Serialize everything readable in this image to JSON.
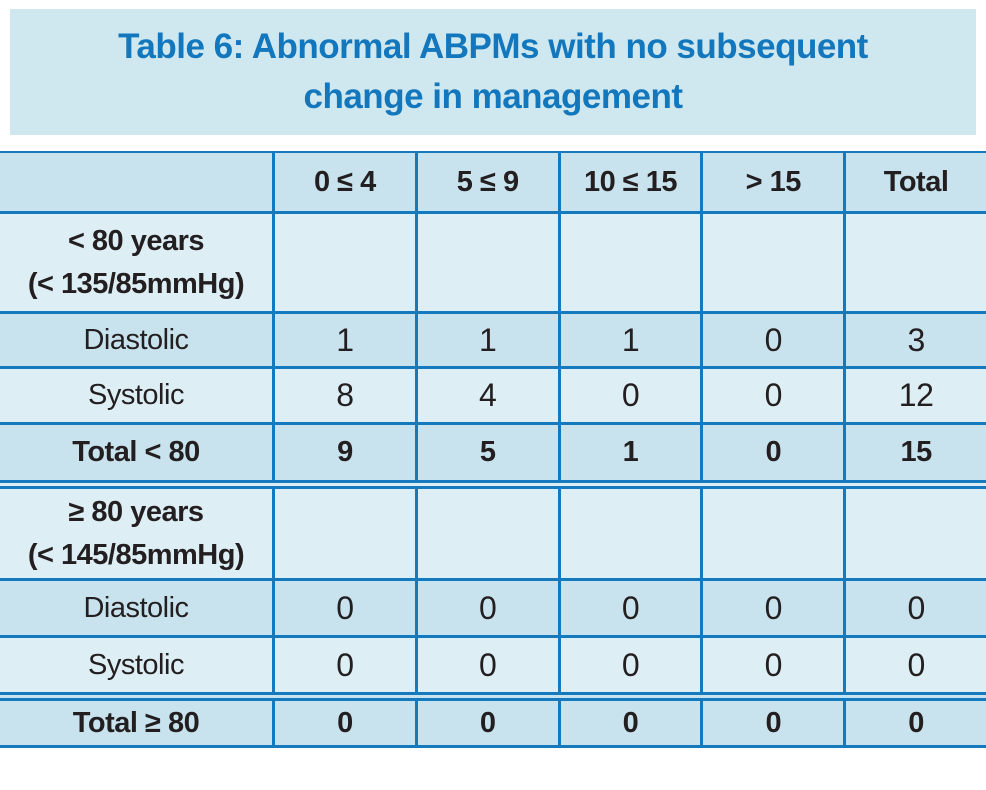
{
  "title": {
    "line1": "Table 6: Abnormal ABPMs with no subsequent",
    "line2": "change in management"
  },
  "table": {
    "columns": [
      "",
      "0 ≤ 4",
      "5 ≤ 9",
      "10 ≤ 15",
      "> 15",
      "Total"
    ],
    "rows": [
      {
        "label1": "< 80 years",
        "label2": "(< 135/85mmHg)",
        "cells": [
          "",
          "",
          "",
          "",
          ""
        ]
      },
      {
        "label1": "Diastolic",
        "label2": "",
        "cells": [
          "1",
          "1",
          "1",
          "0",
          "3"
        ]
      },
      {
        "label1": "Systolic",
        "label2": "",
        "cells": [
          "8",
          "4",
          "0",
          "0",
          "12"
        ]
      },
      {
        "label1": "Total < 80",
        "label2": "",
        "cells": [
          "9",
          "5",
          "1",
          "0",
          "15"
        ]
      },
      {
        "label1": "≥ 80 years",
        "label2": "(< 145/85mmHg)",
        "cells": [
          "",
          "",
          "",
          "",
          ""
        ]
      },
      {
        "label1": "Diastolic",
        "label2": "",
        "cells": [
          "0",
          "0",
          "0",
          "0",
          "0"
        ]
      },
      {
        "label1": "Systolic",
        "label2": "",
        "cells": [
          "0",
          "0",
          "0",
          "0",
          "0"
        ]
      },
      {
        "label1": "Total ≥ 80",
        "label2": "",
        "cells": [
          "0",
          "0",
          "0",
          "0",
          "0"
        ]
      }
    ]
  },
  "chart_data": {
    "type": "table",
    "title": "Table 6: Abnormal ABPMs with no subsequent change in management",
    "columns": [
      "0 ≤ 4",
      "5 ≤ 9",
      "10 ≤ 15",
      "> 15",
      "Total"
    ],
    "sections": [
      {
        "group": "< 80 years (< 135/85mmHg)",
        "rows": [
          {
            "label": "Diastolic",
            "values": [
              1,
              1,
              1,
              0,
              3
            ]
          },
          {
            "label": "Systolic",
            "values": [
              8,
              4,
              0,
              0,
              12
            ]
          },
          {
            "label": "Total < 80",
            "values": [
              9,
              5,
              1,
              0,
              15
            ]
          }
        ]
      },
      {
        "group": "≥ 80 years (< 145/85mmHg)",
        "rows": [
          {
            "label": "Diastolic",
            "values": [
              0,
              0,
              0,
              0,
              0
            ]
          },
          {
            "label": "Systolic",
            "values": [
              0,
              0,
              0,
              0,
              0
            ]
          },
          {
            "label": "Total ≥ 80",
            "values": [
              0,
              0,
              0,
              0,
              0
            ]
          }
        ]
      }
    ]
  },
  "colors": {
    "title_text": "#1277bd",
    "title_bg": "#cfe7ef",
    "border_blue": "#1479bd",
    "row_dark": "#c9e3ee",
    "row_light": "#ddeef5",
    "body_text": "#231f20"
  }
}
